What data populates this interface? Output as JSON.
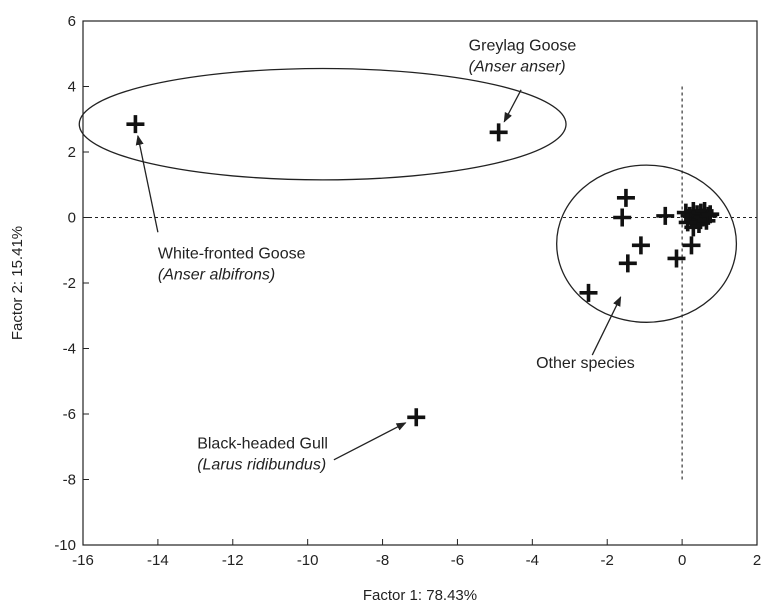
{
  "chart_data": {
    "type": "scatter",
    "title": "",
    "xlabel": "Factor 1: 78.43%",
    "ylabel": "Factor 2: 15.41%",
    "xlim": [
      -16,
      2
    ],
    "ylim": [
      -10,
      6
    ],
    "xticks": [
      -16,
      -14,
      -12,
      -10,
      -8,
      -6,
      -4,
      -2,
      0,
      2
    ],
    "yticks": [
      -10,
      -8,
      -6,
      -4,
      -2,
      0,
      2,
      4,
      6
    ],
    "grid": false,
    "marker": "plus",
    "reference_lines": {
      "x": 0,
      "y": 0,
      "style": "dashed"
    },
    "series": [
      {
        "points": [
          {
            "x": -14.6,
            "y": 2.85
          },
          {
            "x": -4.9,
            "y": 2.6
          },
          {
            "x": -7.1,
            "y": -6.1
          },
          {
            "x": -2.5,
            "y": -2.3
          },
          {
            "x": -1.5,
            "y": 0.6
          },
          {
            "x": -1.6,
            "y": 0.0
          },
          {
            "x": -1.45,
            "y": -1.4
          },
          {
            "x": -1.1,
            "y": -0.85
          },
          {
            "x": -0.45,
            "y": 0.05
          },
          {
            "x": -0.15,
            "y": -1.25
          },
          {
            "x": 0.25,
            "y": -0.85
          },
          {
            "x": 0.1,
            "y": 0.15
          },
          {
            "x": 0.2,
            "y": 0.05
          },
          {
            "x": 0.3,
            "y": 0.2
          },
          {
            "x": 0.35,
            "y": -0.05
          },
          {
            "x": 0.4,
            "y": 0.1
          },
          {
            "x": 0.45,
            "y": -0.2
          },
          {
            "x": 0.5,
            "y": 0.15
          },
          {
            "x": 0.55,
            "y": 0.0
          },
          {
            "x": 0.6,
            "y": 0.2
          },
          {
            "x": 0.65,
            "y": -0.1
          },
          {
            "x": 0.7,
            "y": 0.05
          },
          {
            "x": 0.75,
            "y": 0.1
          },
          {
            "x": 0.3,
            "y": -0.3
          },
          {
            "x": 0.15,
            "y": -0.15
          }
        ]
      }
    ],
    "ellipses": [
      {
        "name": "geese-group",
        "cx": -9.6,
        "cy": 2.85,
        "rx": 6.5,
        "ry": 1.7
      },
      {
        "name": "other-species-group",
        "cx": -0.95,
        "cy": -0.8,
        "rx": 2.4,
        "ry": 2.4
      }
    ],
    "annotations": [
      {
        "name": "greylag-goose",
        "common": "Greylag Goose",
        "latin": "(Anser anser)",
        "tx": -5.7,
        "ty": 5.1,
        "point": [
          -4.9,
          2.6
        ],
        "arrow_from": [
          -4.3,
          3.9
        ]
      },
      {
        "name": "white-fronted-goose",
        "common": "White-fronted Goose",
        "latin": "(Anser albifrons)",
        "tx": -14.0,
        "ty": -1.25,
        "point": [
          -14.6,
          2.85
        ],
        "arrow_from": [
          -14.0,
          -0.45
        ]
      },
      {
        "name": "black-headed-gull",
        "common": "Black-headed Gull",
        "latin": "(Larus ridibundus)",
        "tx": -12.95,
        "ty": -7.05,
        "point": [
          -7.1,
          -6.1
        ],
        "arrow_from": [
          -9.3,
          -7.4
        ]
      },
      {
        "name": "other-species",
        "common": "Other species",
        "latin": "",
        "tx": -3.9,
        "ty": -4.6,
        "point": [
          -1.5,
          -2.1
        ],
        "arrow_from": [
          -2.4,
          -4.2
        ]
      }
    ]
  }
}
